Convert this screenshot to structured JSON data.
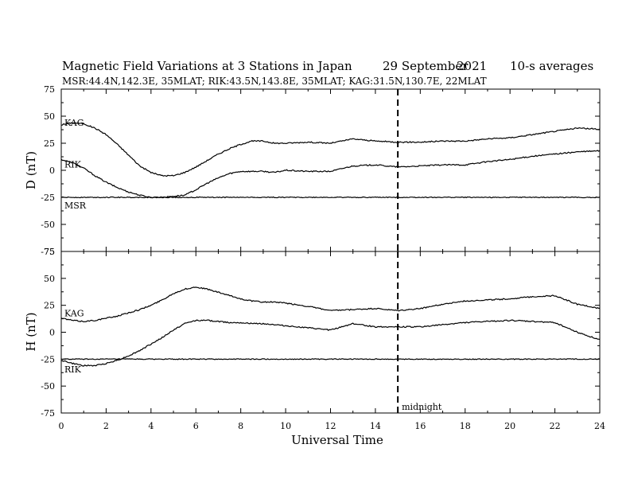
{
  "header": {
    "title": "Magnetic Field Variations at 3 Stations in Japan",
    "date": "29 September",
    "year": "2021",
    "averaging": "10-s averages",
    "stations": "MSR:44.4N,142.3E, 35MLAT;  RIK:43.5N,143.8E, 35MLAT;  KAG:31.5N,130.7E, 22MLAT"
  },
  "colors": {
    "trace": "#000000",
    "background": "#ffffff"
  },
  "chart_data": [
    {
      "type": "line",
      "panel": "top",
      "ylabel": "D (nT)",
      "xlabel": "",
      "ylim": [
        -75,
        75
      ],
      "xlim": [
        0,
        24
      ],
      "yticks": [
        "75",
        "50",
        "25",
        "0",
        "-25",
        "-50",
        "-75"
      ],
      "marker_line": {
        "x": 15,
        "label": ""
      },
      "series": [
        {
          "name": "KAG",
          "x": [
            0,
            0.5,
            1,
            1.5,
            2,
            2.5,
            3,
            3.5,
            4,
            4.5,
            5,
            5.5,
            6,
            6.5,
            7,
            7.5,
            8,
            8.5,
            9,
            9.5,
            10,
            11,
            12,
            13,
            14,
            15,
            16,
            17,
            18,
            19,
            20,
            21,
            22,
            23,
            24
          ],
          "values": [
            42,
            44,
            43,
            39,
            33,
            24,
            14,
            4,
            -2,
            -5,
            -5,
            -2,
            3,
            9,
            15,
            20,
            24,
            27,
            27,
            25,
            25,
            26,
            25,
            29,
            27,
            26,
            26,
            27,
            27,
            29,
            30,
            33,
            36,
            39,
            38
          ]
        },
        {
          "name": "RIK",
          "x": [
            0,
            0.5,
            1,
            1.5,
            2,
            2.5,
            3,
            3.5,
            4,
            4.5,
            5,
            5.5,
            6,
            6.5,
            7,
            7.5,
            8,
            8.5,
            9,
            9.5,
            10,
            11,
            12,
            13,
            14,
            15,
            16,
            17,
            18,
            19,
            20,
            21,
            22,
            23,
            24
          ],
          "values": [
            10,
            7,
            2,
            -5,
            -11,
            -16,
            -20,
            -23,
            -25,
            -25,
            -24,
            -23,
            -18,
            -12,
            -7,
            -3,
            -1,
            -1,
            -1,
            -2,
            0,
            -1,
            -1,
            4,
            5,
            3,
            4,
            5,
            5,
            8,
            10,
            13,
            15,
            17,
            18
          ]
        },
        {
          "name": "MSR",
          "x": [
            0,
            2,
            4,
            6,
            8,
            10,
            12,
            14,
            16,
            18,
            20,
            22,
            24
          ],
          "values": [
            -25,
            -25,
            -25,
            -25,
            -25,
            -25,
            -25,
            -25,
            -25,
            -25,
            -25,
            -25,
            -25
          ]
        }
      ]
    },
    {
      "type": "line",
      "panel": "bottom",
      "ylabel": "H (nT)",
      "xlabel": "Universal Time",
      "ylim": [
        -75,
        75
      ],
      "xlim": [
        0,
        24
      ],
      "yticks": [
        "75",
        "50",
        "25",
        "0",
        "-25",
        "-50",
        "-75"
      ],
      "xticks": [
        "0",
        "2",
        "4",
        "6",
        "8",
        "10",
        "12",
        "14",
        "16",
        "18",
        "20",
        "22",
        "24"
      ],
      "marker_line": {
        "x": 15,
        "label": "midnight"
      },
      "series": [
        {
          "name": "KAG",
          "x": [
            0,
            0.5,
            1,
            1.5,
            2,
            2.5,
            3,
            3.5,
            4,
            4.5,
            5,
            5.5,
            6,
            6.5,
            7,
            7.5,
            8,
            8.5,
            9,
            9.5,
            10,
            11,
            12,
            13,
            14,
            15,
            16,
            17,
            18,
            19,
            20,
            21,
            22,
            23,
            24
          ],
          "values": [
            13,
            11,
            10,
            11,
            13,
            15,
            18,
            21,
            25,
            30,
            36,
            40,
            42,
            40,
            37,
            34,
            31,
            29,
            28,
            28,
            27,
            24,
            20,
            21,
            22,
            20,
            22,
            26,
            29,
            30,
            31,
            33,
            34,
            26,
            22
          ]
        },
        {
          "name": "RIK",
          "x": [
            0,
            0.5,
            1,
            1.5,
            2,
            2.5,
            3,
            3.5,
            4,
            4.5,
            5,
            5.5,
            6,
            6.5,
            7,
            7.5,
            8,
            8.5,
            9,
            9.5,
            10,
            11,
            12,
            13,
            14,
            15,
            16,
            17,
            18,
            19,
            20,
            21,
            22,
            23,
            24
          ],
          "values": [
            -26,
            -29,
            -31,
            -31,
            -29,
            -26,
            -22,
            -17,
            -11,
            -5,
            2,
            8,
            11,
            11,
            10,
            9,
            9,
            8,
            8,
            7,
            6,
            4,
            2,
            8,
            5,
            5,
            5,
            7,
            9,
            10,
            11,
            10,
            9,
            0,
            -7
          ]
        },
        {
          "name": "MSR",
          "x": [
            0,
            2,
            4,
            6,
            8,
            10,
            12,
            14,
            16,
            18,
            20,
            22,
            24
          ],
          "values": [
            -25,
            -25,
            -25,
            -25,
            -25,
            -25,
            -25,
            -25,
            -25,
            -25,
            -25,
            -25,
            -25
          ]
        }
      ]
    }
  ]
}
